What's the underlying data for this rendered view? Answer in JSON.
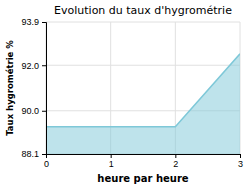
{
  "chart_data": {
    "type": "area",
    "title": "Evolution du taux d'hygrométrie",
    "x_label": "heure par heure",
    "y_label": "Taux hygrométrie %",
    "x": [
      0,
      1,
      2,
      3
    ],
    "values": [
      89.3,
      89.3,
      89.3,
      92.5
    ],
    "color": "#7ec8d8",
    "xlim": [
      0,
      3
    ],
    "xticks": [
      0,
      1,
      2,
      3
    ],
    "ylim": [
      88.1,
      93.9
    ],
    "yticks": [
      88.1,
      {
        "value": 90.0,
        "label": "90.0"
      },
      {
        "value": 92.0,
        "label": "92.0"
      },
      93.9
    ],
    "grid": true
  }
}
